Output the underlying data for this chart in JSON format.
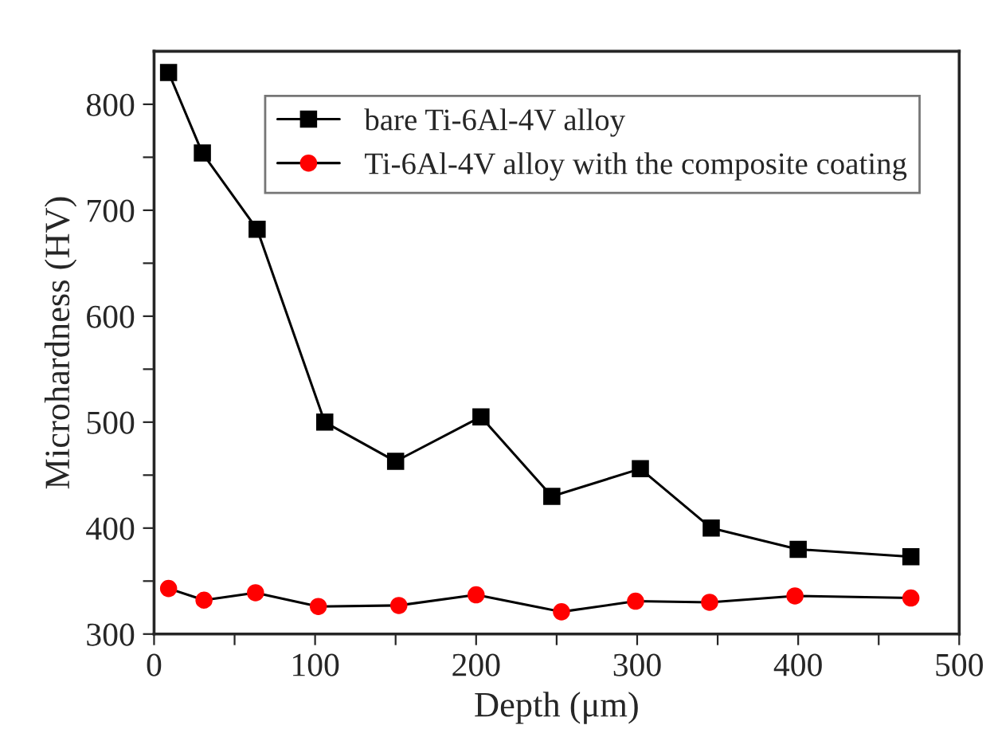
{
  "chart_data": {
    "type": "line",
    "xlabel": "Depth (μm)",
    "ylabel": "Microhardness (HV)",
    "xlim": [
      0,
      500
    ],
    "ylim": [
      300,
      850
    ],
    "xticks": [
      0,
      {
        "value": 50,
        "label": null
      },
      100,
      {
        "value": 150,
        "label": null
      },
      200,
      {
        "value": 250,
        "label": null
      },
      300,
      {
        "value": 350,
        "label": null
      },
      400,
      {
        "value": 450,
        "label": null
      },
      500
    ],
    "yticks": [
      300,
      {
        "value": 350,
        "label": null
      },
      400,
      {
        "value": 450,
        "label": null
      },
      500,
      {
        "value": 550,
        "label": null
      },
      600,
      {
        "value": 650,
        "label": null
      },
      700,
      {
        "value": 750,
        "label": null
      },
      800
    ],
    "grid": false,
    "legend": "top right",
    "series": [
      {
        "name": "bare Ti-6Al-4V alloy",
        "color": "#000000",
        "marker": "square",
        "x": [
          9,
          30,
          64,
          106,
          150,
          203,
          247,
          302,
          346,
          400,
          470
        ],
        "values": [
          830,
          754,
          682,
          500,
          463,
          505,
          430,
          456,
          400,
          380,
          373
        ]
      },
      {
        "name": "Ti-6Al-4V alloy with the composite coating",
        "color": "#ff0000",
        "marker": "circle",
        "x": [
          9,
          31,
          63,
          102,
          152,
          200,
          253,
          299,
          345,
          398,
          470
        ],
        "values": [
          343,
          332,
          339,
          326,
          327,
          337,
          321,
          331,
          330,
          336,
          334
        ]
      }
    ]
  }
}
